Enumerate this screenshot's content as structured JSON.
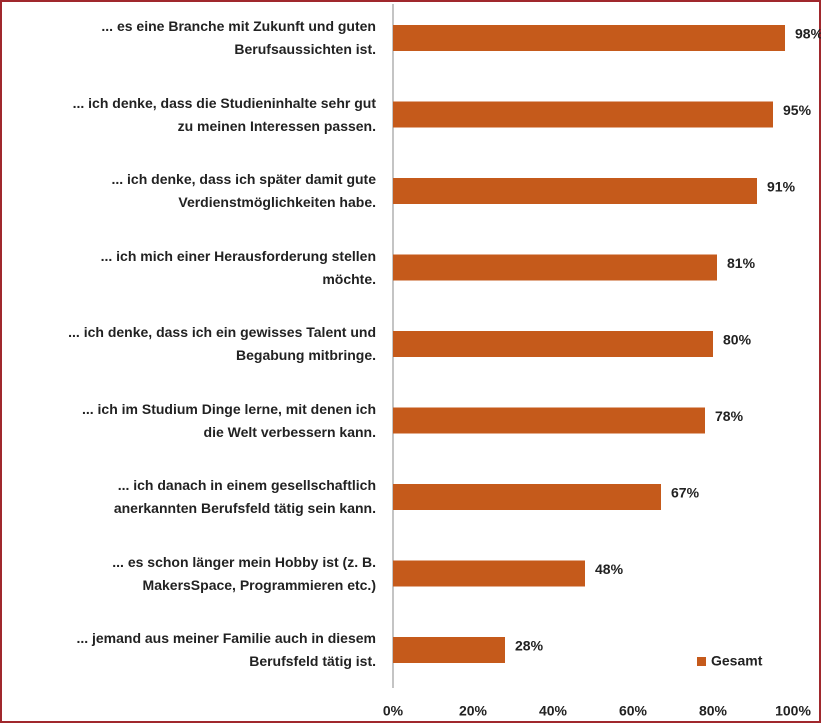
{
  "chart_data": {
    "type": "bar",
    "orientation": "horizontal",
    "categories": [
      "... es eine Branche mit Zukunft und guten\nBerufsaussichten ist.",
      "... ich denke, dass die Studieninhalte sehr gut\nzu meinen Interessen passen.",
      "... ich denke, dass ich später damit gute\nVerdienstmöglichkeiten habe.",
      "... ich mich einer Herausforderung stellen\nmöchte.",
      "... ich denke, dass ich ein gewisses Talent und\nBegabung mitbringe.",
      "... ich im Studium Dinge lerne, mit denen ich\ndie Welt verbessern kann.",
      "... ich danach in einem gesellschaftlich\nanerkannten Berufsfeld tätig sein kann.",
      "... es schon länger mein Hobby ist (z. B.\nMakersSpace, Programmieren etc.)",
      "... jemand aus meiner Familie auch in diesem\nBerufsfeld tätig ist."
    ],
    "series": [
      {
        "name": "Gesamt",
        "color": "#c55a1b",
        "values": [
          98,
          95,
          91,
          81,
          80,
          78,
          67,
          48,
          28
        ],
        "value_labels": [
          "98%",
          "95%",
          "91%",
          "81%",
          "80%",
          "78%",
          "67%",
          "48%",
          "28%"
        ]
      }
    ],
    "xlim": [
      0,
      100
    ],
    "xticks": [
      {
        "value": 0,
        "label": "0%"
      },
      {
        "value": 20,
        "label": "20%"
      },
      {
        "value": 40,
        "label": "40%"
      },
      {
        "value": 60,
        "label": "60%"
      },
      {
        "value": 80,
        "label": "80%"
      },
      {
        "value": 100,
        "label": "100%"
      }
    ],
    "legend": "bottom-right"
  }
}
